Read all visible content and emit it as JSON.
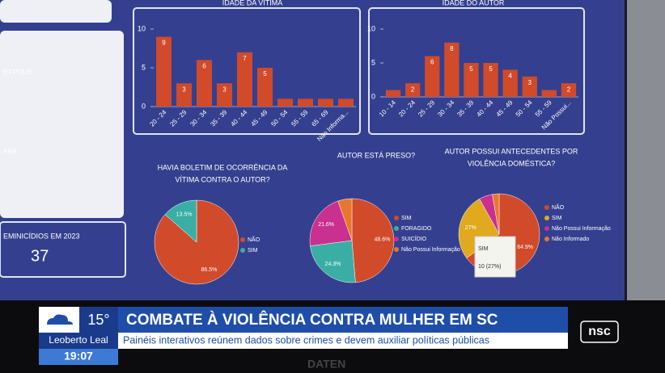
{
  "chart_data": [
    {
      "type": "bar",
      "title": [
        "IDADE DA VÍTIMA"
      ],
      "categories": [
        "20 - 24",
        "25 - 29",
        "30 - 34",
        "35 - 39",
        "40 - 44",
        "45 - 49",
        "50 - 54",
        "55 - 59",
        "65 - 69",
        "Não Informa..."
      ],
      "values": [
        9,
        3,
        6,
        3,
        7,
        5,
        1,
        1,
        1,
        1
      ],
      "value_labels": [
        "9",
        "3",
        "6",
        "3",
        "7",
        "5",
        null,
        null,
        null,
        null
      ],
      "color": "#d14a2a",
      "ylim": [
        0,
        10
      ],
      "yticks": [
        0,
        5,
        10
      ]
    },
    {
      "type": "bar",
      "title": [
        "IDADE DO AUTOR"
      ],
      "categories": [
        "10 - 14",
        "20 - 24",
        "25 - 29",
        "30 - 34",
        "35 - 39",
        "40 - 44",
        "45 - 49",
        "50 - 54",
        "55 - 59",
        "Não Possui..."
      ],
      "values": [
        1,
        2,
        6,
        8,
        5,
        5,
        4,
        3,
        1,
        2
      ],
      "value_labels": [
        null,
        "2",
        "6",
        "8",
        "5",
        "5",
        "4",
        "3",
        null,
        "2"
      ],
      "color": "#d14a2a",
      "ylim": [
        0,
        10
      ],
      "yticks": [
        0,
        5,
        10
      ]
    },
    {
      "type": "pie",
      "title": [
        "HAVIA BOLETIM DE OCORRÊNCIA DA",
        "VÍTIMA CONTRA O AUTOR?"
      ],
      "categories": [
        "NÃO",
        "SIM"
      ],
      "values": [
        86.5,
        13.5
      ],
      "value_labels": [
        "86.5%",
        "13.5%"
      ],
      "colors": [
        "#d14a2a",
        "#3aaea4"
      ]
    },
    {
      "type": "pie",
      "title": [
        "AUTOR ESTÁ PRESO?"
      ],
      "categories": [
        "SIM",
        "FORAGIDO",
        "SUICÍDIO",
        "Não Possui Informação"
      ],
      "values": [
        48.6,
        24.3,
        21.6,
        5.4
      ],
      "value_labels": [
        "48.6%",
        "24.3%",
        "21.6%",
        null
      ],
      "colors": [
        "#d14a2a",
        "#3aaea4",
        "#c9308f",
        "#e8772e"
      ]
    },
    {
      "type": "pie",
      "title": [
        "AUTOR POSSUI ANTECEDENTES POR",
        "VIOLÊNCIA DOMÉSTICA?"
      ],
      "categories": [
        "NÃO",
        "SIM",
        "Não Possui Informação",
        "Não Informado"
      ],
      "values": [
        64.9,
        27,
        5.4,
        2.7
      ],
      "value_labels": [
        "64.9%",
        "27%",
        null,
        null
      ],
      "colors": [
        "#d14a2a",
        "#e0a91e",
        "#c9308f",
        "#e8772e"
      ],
      "tooltip": {
        "name": "SIM",
        "text": "10 (27%)"
      }
    }
  ],
  "dashboard": {
    "side_labels": [
      "E FPOLIS",
      "ANA"
    ],
    "kpi": {
      "label": "EMINICÍDIOS EM 2023",
      "value": "37"
    }
  },
  "broadcast": {
    "temperature": "15°",
    "location": "Leoberto Leal",
    "time": "19:07",
    "headline": "COMBATE À VIOLÊNCIA CONTRA MULHER EM SC",
    "subheadline": "Painéis interativos reúnem dados sobre crimes e devem auxiliar políticas públicas",
    "logo": "nsc",
    "monitor_brand": "DATEN"
  }
}
